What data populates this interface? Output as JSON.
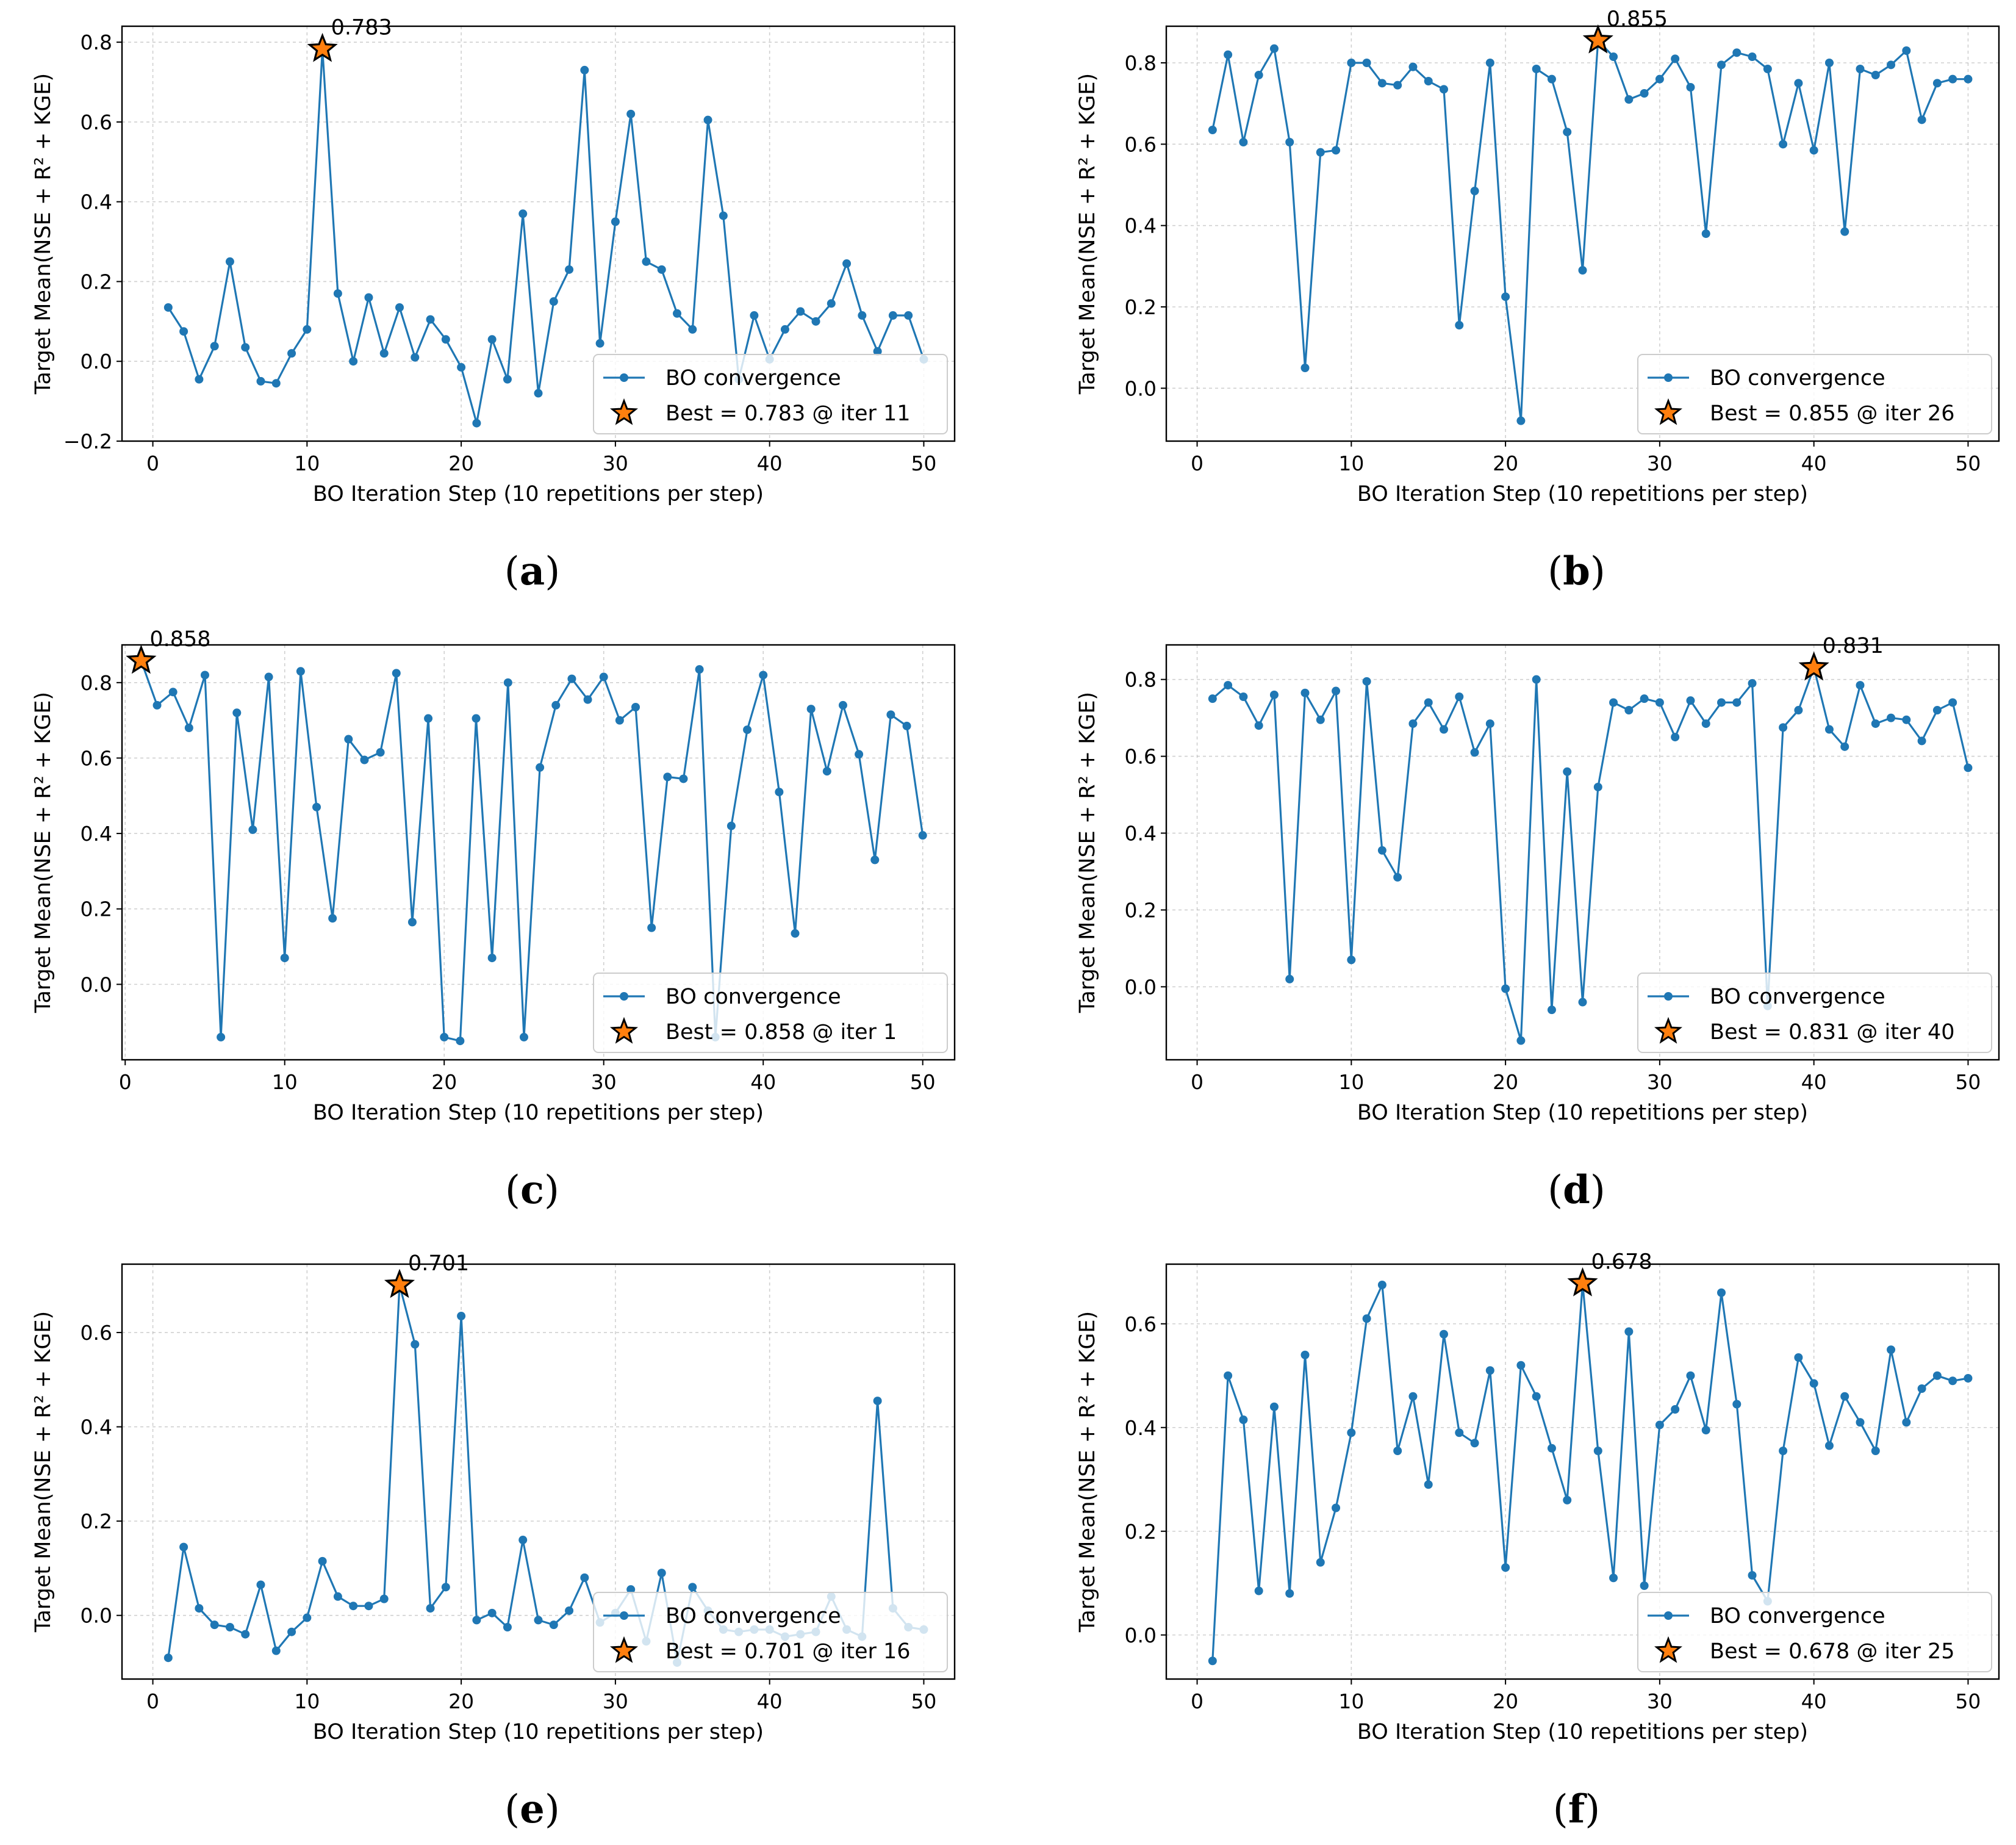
{
  "colors": {
    "line": "#1f77b4",
    "star": "#ff7f0e",
    "grid": "#b0b0b0"
  },
  "chart_data": [
    {
      "type": "line",
      "panel_letter": "a",
      "xlabel": "BO Iteration Step (10 repetitions per step)",
      "ylabel": "Target Mean(NSE + R² + KGE)",
      "xlim": [
        -2,
        52
      ],
      "ylim": [
        -0.2,
        0.84
      ],
      "xticks": [
        0,
        10,
        20,
        30,
        40,
        50
      ],
      "xtick_labels": [
        "0",
        "10",
        "20",
        "30",
        "40",
        "50"
      ],
      "yticks": [
        -0.2,
        0.0,
        0.2,
        0.4,
        0.6,
        0.8
      ],
      "ytick_labels": [
        "−0.2",
        "0.0",
        "0.2",
        "0.4",
        "0.6",
        "0.8"
      ],
      "x": [
        1,
        2,
        3,
        4,
        5,
        6,
        7,
        8,
        9,
        10,
        11,
        12,
        13,
        14,
        15,
        16,
        17,
        18,
        19,
        20,
        21,
        22,
        23,
        24,
        25,
        26,
        27,
        28,
        29,
        30,
        31,
        32,
        33,
        34,
        35,
        36,
        37,
        38,
        39,
        40,
        41,
        42,
        43,
        44,
        45,
        46,
        47,
        48,
        49,
        50
      ],
      "y": [
        0.135,
        0.075,
        -0.045,
        0.038,
        0.25,
        0.035,
        -0.05,
        -0.055,
        0.02,
        0.08,
        0.783,
        0.17,
        0.0,
        0.16,
        0.02,
        0.135,
        0.01,
        0.105,
        0.055,
        -0.015,
        -0.155,
        0.055,
        -0.045,
        0.37,
        -0.08,
        0.15,
        0.23,
        0.73,
        0.045,
        0.35,
        0.62,
        0.25,
        0.23,
        0.12,
        0.08,
        0.605,
        0.365,
        -0.045,
        0.115,
        0.005,
        0.08,
        0.125,
        0.1,
        0.145,
        0.245,
        0.115,
        0.025,
        0.115,
        0.115,
        0.005
      ],
      "series_name": "BO convergence",
      "best": {
        "iter": 11,
        "value": 0.783,
        "annotation": "0.783",
        "legend": "Best = 0.783 @ iter 11"
      },
      "legend_position": "lower-right"
    },
    {
      "type": "line",
      "panel_letter": "b",
      "xlabel": "BO Iteration Step (10 repetitions per step)",
      "ylabel": "Target Mean(NSE + R² + KGE)",
      "xlim": [
        -2,
        52
      ],
      "ylim": [
        -0.13,
        0.89
      ],
      "xticks": [
        0,
        10,
        20,
        30,
        40,
        50
      ],
      "xtick_labels": [
        "0",
        "10",
        "20",
        "30",
        "40",
        "50"
      ],
      "yticks": [
        0.0,
        0.2,
        0.4,
        0.6,
        0.8
      ],
      "ytick_labels": [
        "0.0",
        "0.2",
        "0.4",
        "0.6",
        "0.8"
      ],
      "x": [
        1,
        2,
        3,
        4,
        5,
        6,
        7,
        8,
        9,
        10,
        11,
        12,
        13,
        14,
        15,
        16,
        17,
        18,
        19,
        20,
        21,
        22,
        23,
        24,
        25,
        26,
        27,
        28,
        29,
        30,
        31,
        32,
        33,
        34,
        35,
        36,
        37,
        38,
        39,
        40,
        41,
        42,
        43,
        44,
        45,
        46,
        47,
        48,
        49,
        50
      ],
      "y": [
        0.635,
        0.82,
        0.605,
        0.77,
        0.835,
        0.605,
        0.05,
        0.58,
        0.585,
        0.8,
        0.8,
        0.75,
        0.745,
        0.79,
        0.755,
        0.735,
        0.155,
        0.485,
        0.8,
        0.225,
        -0.08,
        0.785,
        0.76,
        0.63,
        0.29,
        0.855,
        0.815,
        0.71,
        0.725,
        0.76,
        0.81,
        0.74,
        0.38,
        0.795,
        0.825,
        0.815,
        0.785,
        0.6,
        0.75,
        0.585,
        0.8,
        0.385,
        0.785,
        0.77,
        0.795,
        0.83,
        0.66,
        0.75,
        0.76,
        0.76
      ],
      "series_name": "BO convergence",
      "best": {
        "iter": 26,
        "value": 0.855,
        "annotation": "0.855",
        "legend": "Best = 0.855 @ iter 26"
      },
      "legend_position": "lower-right"
    },
    {
      "type": "line",
      "panel_letter": "c",
      "xlabel": "BO Iteration Step (10 repetitions per step)",
      "ylabel": "Target Mean(NSE + R² + KGE)",
      "xlim": [
        -0.2,
        52
      ],
      "ylim": [
        -0.2,
        0.9
      ],
      "xticks": [
        0,
        10,
        20,
        30,
        40,
        50
      ],
      "xtick_labels": [
        "0",
        "10",
        "20",
        "30",
        "40",
        "50"
      ],
      "yticks": [
        0.0,
        0.2,
        0.4,
        0.6,
        0.8
      ],
      "ytick_labels": [
        "0.0",
        "0.2",
        "0.4",
        "0.6",
        "0.8"
      ],
      "x": [
        1,
        2,
        3,
        4,
        5,
        6,
        7,
        8,
        9,
        10,
        11,
        12,
        13,
        14,
        15,
        16,
        17,
        18,
        19,
        20,
        21,
        22,
        23,
        24,
        25,
        26,
        27,
        28,
        29,
        30,
        31,
        32,
        33,
        34,
        35,
        36,
        37,
        38,
        39,
        40,
        41,
        42,
        43,
        44,
        45,
        46,
        47,
        48,
        49,
        50
      ],
      "y": [
        0.858,
        0.74,
        0.775,
        0.68,
        0.82,
        -0.14,
        0.72,
        0.41,
        0.815,
        0.07,
        0.83,
        0.47,
        0.175,
        0.65,
        0.595,
        0.615,
        0.825,
        0.165,
        0.705,
        -0.14,
        -0.15,
        0.705,
        0.07,
        0.8,
        -0.14,
        0.575,
        0.74,
        0.81,
        0.755,
        0.815,
        0.7,
        0.735,
        0.15,
        0.55,
        0.545,
        0.835,
        -0.14,
        0.42,
        0.675,
        0.82,
        0.51,
        0.135,
        0.73,
        0.565,
        0.74,
        0.61,
        0.33,
        0.715,
        0.685,
        0.395
      ],
      "series_name": "BO convergence",
      "best": {
        "iter": 1,
        "value": 0.858,
        "annotation": "0.858",
        "legend": "Best = 0.858 @ iter 1"
      },
      "legend_position": "lower-right"
    },
    {
      "type": "line",
      "panel_letter": "d",
      "xlabel": "BO Iteration Step (10 repetitions per step)",
      "ylabel": "Target Mean(NSE + R² + KGE)",
      "xlim": [
        -2,
        52
      ],
      "ylim": [
        -0.19,
        0.89
      ],
      "xticks": [
        0,
        10,
        20,
        30,
        40,
        50
      ],
      "xtick_labels": [
        "0",
        "10",
        "20",
        "30",
        "40",
        "50"
      ],
      "yticks": [
        0.0,
        0.2,
        0.4,
        0.6,
        0.8
      ],
      "ytick_labels": [
        "0.0",
        "0.2",
        "0.4",
        "0.6",
        "0.8"
      ],
      "x": [
        1,
        2,
        3,
        4,
        5,
        6,
        7,
        8,
        9,
        10,
        11,
        12,
        13,
        14,
        15,
        16,
        17,
        18,
        19,
        20,
        21,
        22,
        23,
        24,
        25,
        26,
        27,
        28,
        29,
        30,
        31,
        32,
        33,
        34,
        35,
        36,
        37,
        38,
        39,
        40,
        41,
        42,
        43,
        44,
        45,
        46,
        47,
        48,
        49,
        50
      ],
      "y": [
        0.75,
        0.785,
        0.755,
        0.68,
        0.76,
        0.02,
        0.765,
        0.695,
        0.77,
        0.07,
        0.795,
        0.355,
        0.285,
        0.685,
        0.74,
        0.67,
        0.755,
        0.61,
        0.685,
        -0.005,
        -0.14,
        0.8,
        -0.06,
        0.56,
        -0.04,
        0.52,
        0.74,
        0.72,
        0.75,
        0.74,
        0.65,
        0.745,
        0.685,
        0.74,
        0.74,
        0.79,
        -0.05,
        0.675,
        0.72,
        0.831,
        0.67,
        0.625,
        0.785,
        0.685,
        0.7,
        0.695,
        0.64,
        0.72,
        0.74,
        0.57
      ],
      "series_name": "BO convergence",
      "best": {
        "iter": 40,
        "value": 0.831,
        "annotation": "0.831",
        "legend": "Best = 0.831 @ iter 40"
      },
      "legend_position": "lower-right"
    },
    {
      "type": "line",
      "panel_letter": "e",
      "xlabel": "BO Iteration Step (10 repetitions per step)",
      "ylabel": "Target Mean(NSE + R² + KGE)",
      "xlim": [
        -2,
        52
      ],
      "ylim": [
        -0.135,
        0.745
      ],
      "xticks": [
        0,
        10,
        20,
        30,
        40,
        50
      ],
      "xtick_labels": [
        "0",
        "10",
        "20",
        "30",
        "40",
        "50"
      ],
      "yticks": [
        0.0,
        0.2,
        0.4,
        0.6
      ],
      "ytick_labels": [
        "0.0",
        "0.2",
        "0.4",
        "0.6"
      ],
      "x": [
        1,
        2,
        3,
        4,
        5,
        6,
        7,
        8,
        9,
        10,
        11,
        12,
        13,
        14,
        15,
        16,
        17,
        18,
        19,
        20,
        21,
        22,
        23,
        24,
        25,
        26,
        27,
        28,
        29,
        30,
        31,
        32,
        33,
        34,
        35,
        36,
        37,
        38,
        39,
        40,
        41,
        42,
        43,
        44,
        45,
        46,
        47,
        48,
        49,
        50
      ],
      "y": [
        -0.09,
        0.145,
        0.015,
        -0.02,
        -0.025,
        -0.04,
        0.065,
        -0.075,
        -0.035,
        -0.005,
        0.115,
        0.04,
        0.02,
        0.02,
        0.035,
        0.701,
        0.575,
        0.015,
        0.06,
        0.635,
        -0.01,
        0.005,
        -0.025,
        0.16,
        -0.01,
        -0.02,
        0.01,
        0.08,
        -0.015,
        0.005,
        0.055,
        -0.055,
        0.09,
        -0.1,
        0.06,
        0.01,
        -0.03,
        -0.035,
        -0.03,
        -0.03,
        -0.045,
        -0.04,
        -0.035,
        0.04,
        -0.03,
        -0.045,
        0.455,
        0.015,
        -0.025,
        -0.03
      ],
      "series_name": "BO convergence",
      "best": {
        "iter": 16,
        "value": 0.701,
        "annotation": "0.701",
        "legend": "Best = 0.701 @ iter 16"
      },
      "legend_position": "lower-right"
    },
    {
      "type": "line",
      "panel_letter": "f",
      "xlabel": "BO Iteration Step (10 repetitions per step)",
      "ylabel": "Target Mean(NSE + R² + KGE)",
      "xlim": [
        -2,
        52
      ],
      "ylim": [
        -0.085,
        0.715
      ],
      "xticks": [
        0,
        10,
        20,
        30,
        40,
        50
      ],
      "xtick_labels": [
        "0",
        "10",
        "20",
        "30",
        "40",
        "50"
      ],
      "yticks": [
        0.0,
        0.2,
        0.4,
        0.6
      ],
      "ytick_labels": [
        "0.0",
        "0.2",
        "0.4",
        "0.6"
      ],
      "x": [
        1,
        2,
        3,
        4,
        5,
        6,
        7,
        8,
        9,
        10,
        11,
        12,
        13,
        14,
        15,
        16,
        17,
        18,
        19,
        20,
        21,
        22,
        23,
        24,
        25,
        26,
        27,
        28,
        29,
        30,
        31,
        32,
        33,
        34,
        35,
        36,
        37,
        38,
        39,
        40,
        41,
        42,
        43,
        44,
        45,
        46,
        47,
        48,
        49,
        50
      ],
      "y": [
        -0.05,
        0.5,
        0.415,
        0.085,
        0.44,
        0.08,
        0.54,
        0.14,
        0.245,
        0.39,
        0.61,
        0.675,
        0.355,
        0.46,
        0.29,
        0.58,
        0.39,
        0.37,
        0.51,
        0.13,
        0.52,
        0.46,
        0.36,
        0.26,
        0.678,
        0.355,
        0.11,
        0.585,
        0.095,
        0.405,
        0.435,
        0.5,
        0.395,
        0.66,
        0.445,
        0.115,
        0.065,
        0.355,
        0.535,
        0.485,
        0.365,
        0.46,
        0.41,
        0.355,
        0.55,
        0.41,
        0.475,
        0.5,
        0.49,
        0.495
      ],
      "series_name": "BO convergence",
      "best": {
        "iter": 25,
        "value": 0.678,
        "annotation": "0.678",
        "legend": "Best = 0.678 @ iter 25"
      },
      "legend_position": "lower-right"
    }
  ]
}
